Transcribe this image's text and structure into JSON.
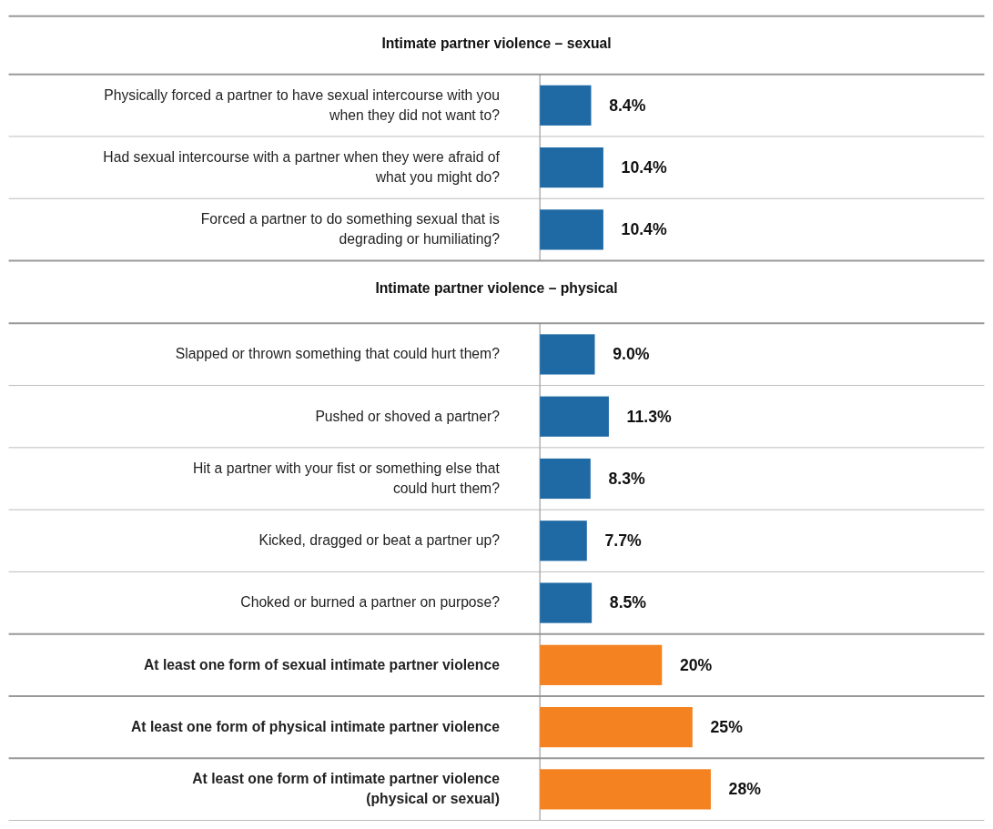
{
  "chart_data": {
    "type": "bar",
    "orientation": "horizontal",
    "categories": [
      "Physically forced a partner to have sexual intercourse with you\nwhen they did not want to?",
      "Had sexual intercourse with a partner when they were afraid of\nwhat you might do?",
      "Forced a partner to do something sexual that is\ndegrading or humiliating?",
      "Slapped or thrown something that could hurt them?",
      "Pushed or shoved a partner?",
      "Hit a partner with your fist or something else that\ncould hurt them?",
      "Kicked, dragged or beat a partner up?",
      "Choked or burned a partner on purpose?",
      "At least one form of sexual intimate partner violence",
      "At least one form of physical intimate partner violence",
      "At least one form of intimate partner violence\n(physical or sexual)"
    ],
    "values": [
      8.4,
      10.4,
      10.4,
      9.0,
      11.3,
      8.3,
      7.7,
      8.5,
      20,
      25,
      28
    ],
    "value_labels": [
      "8.4%",
      "10.4%",
      "10.4%",
      "9.0%",
      "11.3%",
      "8.3%",
      "7.7%",
      "8.5%",
      "20%",
      "25%",
      "28%"
    ],
    "colors": [
      "#1f6aa5",
      "#1f6aa5",
      "#1f6aa5",
      "#1f6aa5",
      "#1f6aa5",
      "#1f6aa5",
      "#1f6aa5",
      "#1f6aa5",
      "#f58220",
      "#f58220",
      "#f58220"
    ],
    "annotations": [
      "Intimate partner violence – sexual",
      "Intimate partner violence – physical"
    ],
    "relative": false,
    "grid": true
  }
}
